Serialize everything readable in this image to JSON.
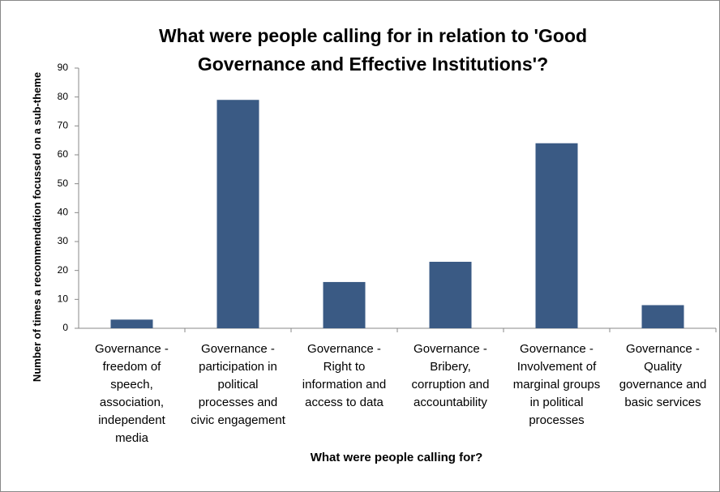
{
  "chart_data": {
    "type": "bar",
    "title": "What were people calling for in relation to 'Good\nGovernance and Effective Institutions'?",
    "x_label": "What were people calling for?",
    "y_label": "Number of times a recommendation focussed on a sub-theme",
    "categories": [
      "Governance -\nfreedom of\nspeech,\nassociation,\nindependent\nmedia",
      "Governance -\nparticipation in\npolitical\nprocesses and\ncivic engagement",
      "Governance -\nRight to\ninformation and\naccess to data",
      "Governance -\nBribery,\ncorruption and\naccountability",
      "Governance -\nInvolvement of\nmarginal groups\nin political\nprocesses",
      "Governance -\nQuality\ngovernance and\nbasic services"
    ],
    "values": [
      3,
      79,
      16,
      23,
      64,
      8
    ],
    "color": "#3a5a84",
    "ylim": [
      0,
      90
    ],
    "yticks": [
      0,
      10,
      20,
      30,
      40,
      50,
      60,
      70,
      80,
      90
    ],
    "grid": false
  }
}
